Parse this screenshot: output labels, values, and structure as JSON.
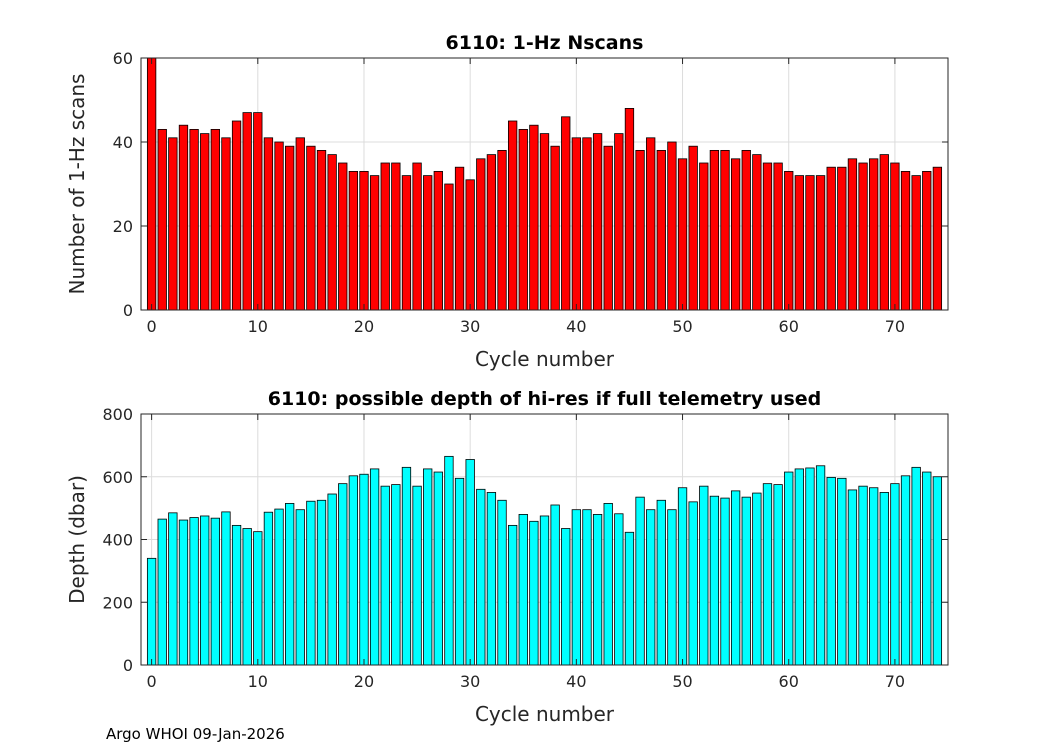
{
  "footer": "Argo WHOI 09-Jan-2026",
  "chart_data": [
    {
      "type": "bar",
      "title": "6110: 1-Hz Nscans",
      "xlabel": "Cycle number",
      "ylabel": "Number of 1-Hz scans",
      "xlim": [
        -1,
        75
      ],
      "ylim": [
        0,
        60
      ],
      "xticks": [
        0,
        10,
        20,
        30,
        40,
        50,
        60,
        70
      ],
      "yticks": [
        0,
        20,
        40,
        60
      ],
      "grid": true,
      "bar_color": "#ff0000",
      "x": [
        0,
        1,
        2,
        3,
        4,
        5,
        6,
        7,
        8,
        9,
        10,
        11,
        12,
        13,
        14,
        15,
        16,
        17,
        18,
        19,
        20,
        21,
        22,
        23,
        24,
        25,
        26,
        27,
        28,
        29,
        30,
        31,
        32,
        33,
        34,
        35,
        36,
        37,
        38,
        39,
        40,
        41,
        42,
        43,
        44,
        45,
        46,
        47,
        48,
        49,
        50,
        51,
        52,
        53,
        54,
        55,
        56,
        57,
        58,
        59,
        60,
        61,
        62,
        63,
        64,
        65,
        66,
        67,
        68,
        69,
        70,
        71,
        72,
        73,
        74
      ],
      "values": [
        60,
        43,
        41,
        44,
        43,
        42,
        43,
        41,
        45,
        47,
        47,
        41,
        40,
        39,
        41,
        39,
        38,
        37,
        35,
        33,
        33,
        32,
        35,
        35,
        32,
        35,
        32,
        33,
        30,
        34,
        31,
        36,
        37,
        38,
        45,
        43,
        44,
        42,
        39,
        46,
        41,
        41,
        42,
        39,
        42,
        48,
        38,
        41,
        38,
        40,
        36,
        39,
        35,
        38,
        38,
        36,
        38,
        37,
        35,
        35,
        33,
        32,
        32,
        32,
        34,
        34,
        36,
        35,
        36,
        37,
        35,
        33,
        32,
        33,
        34
      ]
    },
    {
      "type": "bar",
      "title": "6110: possible depth of hi-res if full telemetry used",
      "xlabel": "Cycle number",
      "ylabel": "Depth (dbar)",
      "xlim": [
        -1,
        75
      ],
      "ylim": [
        0,
        800
      ],
      "xticks": [
        0,
        10,
        20,
        30,
        40,
        50,
        60,
        70
      ],
      "yticks": [
        0,
        200,
        400,
        600,
        800
      ],
      "grid": true,
      "bar_color": "#00ffff",
      "x": [
        0,
        1,
        2,
        3,
        4,
        5,
        6,
        7,
        8,
        9,
        10,
        11,
        12,
        13,
        14,
        15,
        16,
        17,
        18,
        19,
        20,
        21,
        22,
        23,
        24,
        25,
        26,
        27,
        28,
        29,
        30,
        31,
        32,
        33,
        34,
        35,
        36,
        37,
        38,
        39,
        40,
        41,
        42,
        43,
        44,
        45,
        46,
        47,
        48,
        49,
        50,
        51,
        52,
        53,
        54,
        55,
        56,
        57,
        58,
        59,
        60,
        61,
        62,
        63,
        64,
        65,
        66,
        67,
        68,
        69,
        70,
        71,
        72,
        73,
        74
      ],
      "values": [
        340,
        465,
        485,
        462,
        470,
        475,
        468,
        488,
        445,
        435,
        425,
        487,
        497,
        515,
        495,
        522,
        525,
        545,
        578,
        603,
        608,
        625,
        570,
        575,
        630,
        570,
        625,
        615,
        665,
        595,
        655,
        560,
        550,
        525,
        445,
        480,
        458,
        475,
        510,
        435,
        495,
        495,
        480,
        515,
        482,
        423,
        535,
        495,
        525,
        495,
        565,
        520,
        570,
        538,
        532,
        555,
        535,
        548,
        578,
        575,
        615,
        625,
        628,
        635,
        598,
        595,
        558,
        570,
        565,
        550,
        578,
        603,
        630,
        615,
        600
      ]
    }
  ]
}
